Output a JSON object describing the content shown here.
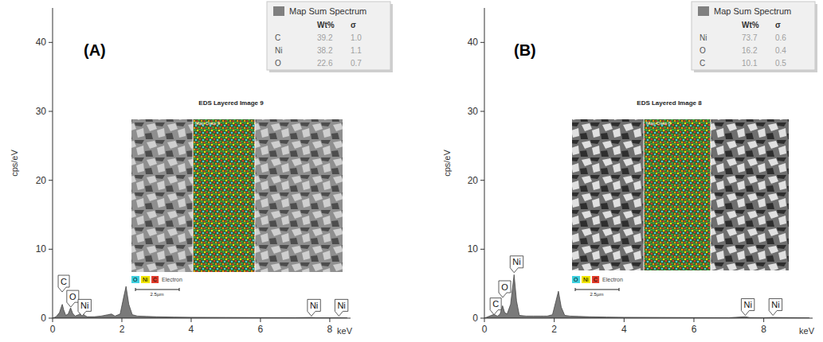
{
  "chart_data": [
    {
      "type": "line",
      "panel_label": "(A)",
      "title": "EDS Layered Image 9",
      "y_label": "cps/eV",
      "x_label": "keV",
      "xlim": [
        0,
        8.6
      ],
      "ylim": [
        0,
        45
      ],
      "xticks": [
        0,
        2,
        4,
        6,
        8
      ],
      "yticks": [
        0,
        10,
        20,
        30,
        40
      ],
      "color": "#7a7a7a",
      "x": [
        0,
        0.1,
        0.2,
        0.25,
        0.28,
        0.32,
        0.38,
        0.45,
        0.52,
        0.58,
        0.65,
        0.75,
        0.85,
        0.92,
        1.0,
        1.2,
        1.4,
        1.6,
        1.7,
        1.8,
        1.95,
        2.05,
        2.12,
        2.2,
        2.3,
        2.45,
        2.7,
        3.0,
        3.5,
        4.0,
        5.0,
        6.0,
        7.0,
        7.47,
        7.6,
        8.0,
        8.26,
        8.5
      ],
      "values": [
        0,
        0.2,
        0.8,
        1.6,
        2.0,
        1.2,
        0.4,
        0.6,
        1.5,
        0.7,
        0.3,
        0.5,
        0.8,
        0.4,
        0.2,
        0.2,
        0.3,
        0.5,
        0.6,
        0.3,
        0.6,
        3.0,
        4.6,
        2.0,
        0.5,
        0.3,
        0.25,
        0.2,
        0.15,
        0.12,
        0.1,
        0.08,
        0.06,
        0.1,
        0.06,
        0.05,
        0.06,
        0.04
      ],
      "peak_labels": [
        {
          "label": "C",
          "x": 0.277,
          "y": 3.8
        },
        {
          "label": "O",
          "x": 0.525,
          "y": 1.6
        },
        {
          "label": "Ni",
          "x": 0.851,
          "y": 0.3
        },
        {
          "label": "Ni",
          "x": 7.471,
          "y": 0.3
        },
        {
          "label": "Ni",
          "x": 8.264,
          "y": 0.3
        }
      ],
      "legend_table": {
        "title": "Map Sum Spectrum",
        "columns": [
          "Wt%",
          "σ"
        ],
        "rows": [
          [
            "C",
            "39.2",
            "1.0"
          ],
          [
            "Ni",
            "38.2",
            "1.1"
          ],
          [
            "O",
            "22.6",
            "0.7"
          ]
        ]
      },
      "inset": {
        "map_label": "Map Data 9",
        "channels": [
          {
            "label": "O",
            "color": "#3fd0e0"
          },
          {
            "label": "Ni",
            "color": "#f2e600"
          },
          {
            "label": "C",
            "color": "#e03a2a"
          }
        ],
        "channel_extra": "Electron",
        "scale_bar": "2.5µm"
      }
    },
    {
      "type": "line",
      "panel_label": "(B)",
      "title": "EDS Layered Image 8",
      "y_label": "cps/eV",
      "x_label": "keV",
      "xlim": [
        0,
        9.4
      ],
      "ylim": [
        0,
        45
      ],
      "xticks": [
        0,
        2,
        4,
        6,
        8
      ],
      "yticks": [
        0,
        10,
        20,
        30,
        40
      ],
      "color": "#7a7a7a",
      "x": [
        0,
        0.1,
        0.2,
        0.25,
        0.28,
        0.32,
        0.38,
        0.45,
        0.52,
        0.58,
        0.65,
        0.75,
        0.85,
        0.92,
        1.0,
        1.2,
        1.4,
        1.6,
        1.7,
        1.8,
        1.95,
        2.05,
        2.12,
        2.2,
        2.3,
        2.45,
        2.7,
        3.0,
        3.5,
        4.0,
        5.0,
        6.0,
        7.0,
        7.47,
        7.6,
        8.0,
        8.26,
        9.3
      ],
      "values": [
        0,
        0.2,
        0.4,
        0.5,
        0.6,
        0.4,
        0.3,
        0.6,
        1.8,
        0.8,
        0.6,
        2.0,
        6.3,
        2.5,
        0.4,
        0.3,
        0.3,
        0.3,
        0.3,
        0.3,
        0.5,
        2.5,
        3.9,
        1.6,
        0.4,
        0.3,
        0.25,
        0.2,
        0.15,
        0.12,
        0.1,
        0.08,
        0.06,
        0.2,
        0.08,
        0.06,
        0.1,
        0.04
      ],
      "peak_labels": [
        {
          "label": "C",
          "x": 0.277,
          "y": 0.5
        },
        {
          "label": "O",
          "x": 0.525,
          "y": 3.0
        },
        {
          "label": "Ni",
          "x": 0.851,
          "y": 6.6
        },
        {
          "label": "Ni",
          "x": 7.471,
          "y": 0.4
        },
        {
          "label": "Ni",
          "x": 8.264,
          "y": 0.4
        }
      ],
      "legend_table": {
        "title": "Map Sum Spectrum",
        "columns": [
          "Wt%",
          "σ"
        ],
        "rows": [
          [
            "Ni",
            "73.7",
            "0.6"
          ],
          [
            "O",
            "16.2",
            "0.4"
          ],
          [
            "C",
            "10.1",
            "0.5"
          ]
        ]
      },
      "inset": {
        "map_label": "Map Data 8",
        "channels": [
          {
            "label": "O",
            "color": "#3fd0e0"
          },
          {
            "label": "Ni",
            "color": "#f2e600"
          },
          {
            "label": "C",
            "color": "#e03a2a"
          }
        ],
        "channel_extra": "Electron",
        "scale_bar": "2.5µm"
      }
    }
  ]
}
